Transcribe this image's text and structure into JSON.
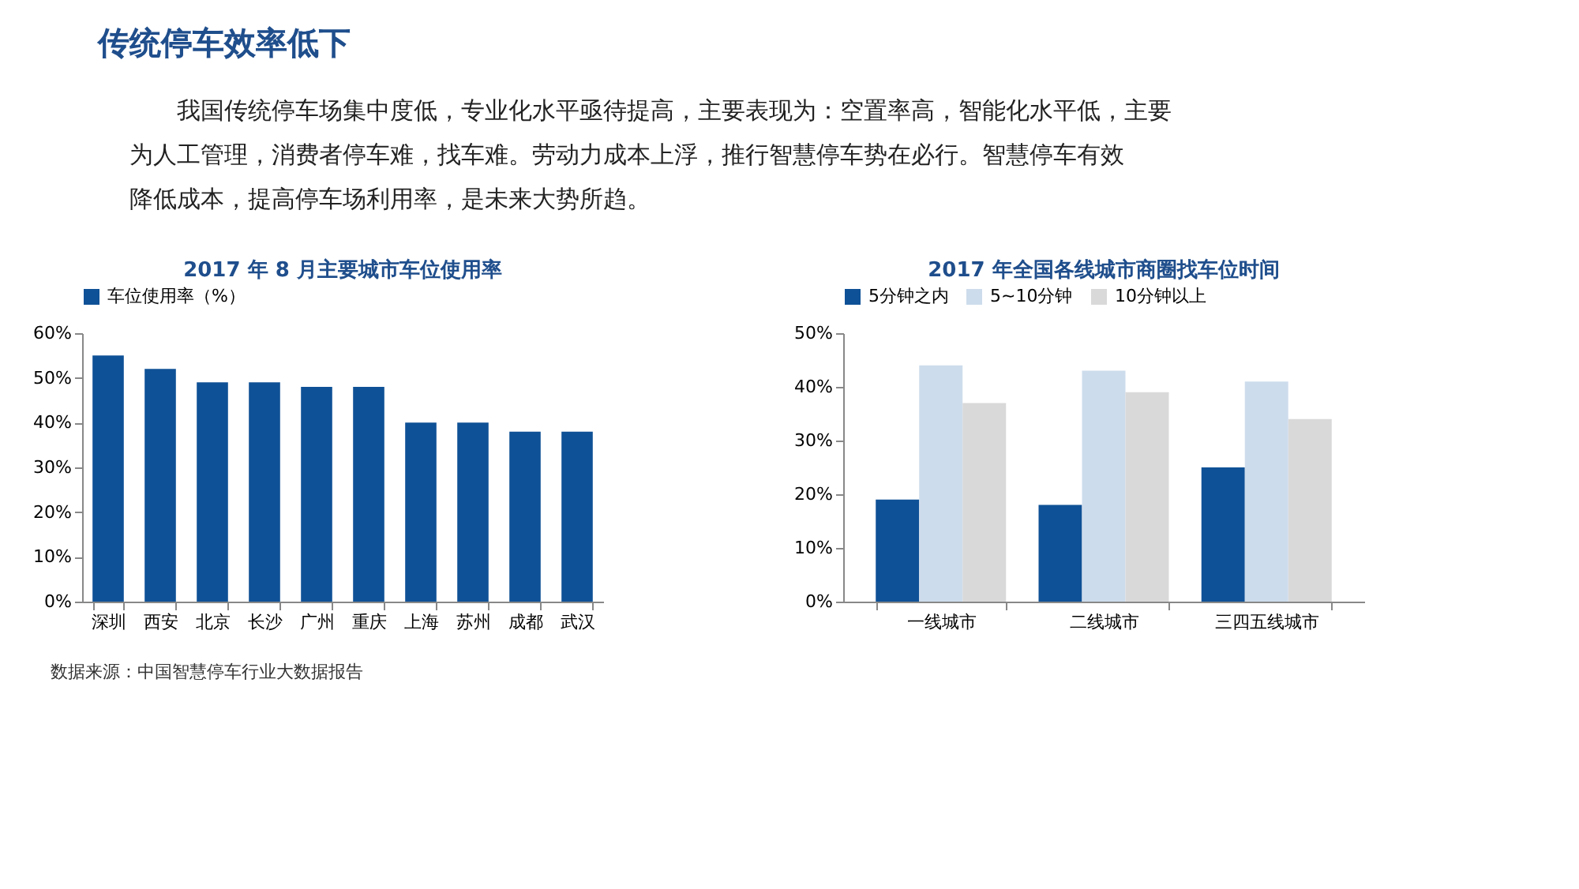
{
  "chart_data": [
    {
      "type": "bar",
      "title": "2017 年 8 月主要城市车位使用率",
      "categories": [
        "深圳",
        "西安",
        "北京",
        "长沙",
        "广州",
        "重庆",
        "上海",
        "苏州",
        "成都",
        "武汉"
      ],
      "series": [
        {
          "name": "车位使用率（%）",
          "color": "#0f5196",
          "values": [
            55,
            52,
            49,
            49,
            48,
            48,
            40,
            40,
            38,
            38
          ]
        }
      ],
      "ylim": [
        0,
        60
      ],
      "yticks": [
        {
          "value": 0,
          "label": "0%"
        },
        {
          "value": 10,
          "label": "10%"
        },
        {
          "value": 20,
          "label": "20%"
        },
        {
          "value": 30,
          "label": "30%"
        },
        {
          "value": 40,
          "label": "40%"
        },
        {
          "value": 50,
          "label": "50%"
        },
        {
          "value": 60,
          "label": "60%"
        }
      ],
      "grid": false,
      "legend": "top",
      "annotations": [
        "传统停车效率低下",
        "我国传统停车场集中度低，专业化水平亟待提高，主要表现为：空置率高，智能化水平低，主要为人工管理，消费者停车难，找车难。劳动力成本上浮，推行智慧停车势在必行。智慧停车有效降低成本，提高停车场利用率，是未来大势所趋。",
        "数据来源：中国智慧停车行业大数据报告"
      ]
    },
    {
      "type": "bar",
      "title": "2017 年全国各线城市商圈找车位时间",
      "categories": [
        "一线城市",
        "二线城市",
        "三四五线城市"
      ],
      "series": [
        {
          "name": "5分钟之内",
          "color": "#0f5196",
          "values": [
            19,
            18,
            25
          ]
        },
        {
          "name": "5~10分钟",
          "color": "#cddcec",
          "values": [
            44,
            43,
            41
          ]
        },
        {
          "name": "10分钟以上",
          "color": "#d9d9d9",
          "values": [
            37,
            39,
            34
          ]
        }
      ],
      "ylim": [
        0,
        50
      ],
      "yticks": [
        {
          "value": 0,
          "label": "0%"
        },
        {
          "value": 10,
          "label": "10%"
        },
        {
          "value": 20,
          "label": "20%"
        },
        {
          "value": 30,
          "label": "30%"
        },
        {
          "value": 40,
          "label": "40%"
        },
        {
          "value": 50,
          "label": "50%"
        }
      ],
      "grid": false,
      "legend": "top"
    }
  ]
}
